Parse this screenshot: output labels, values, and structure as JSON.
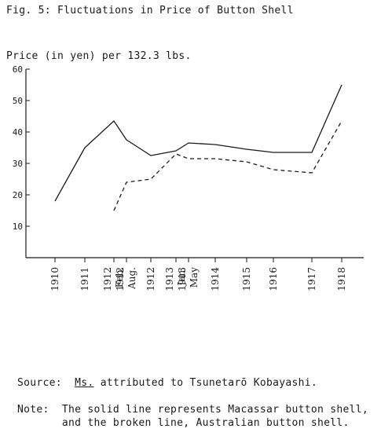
{
  "figure_title": "Fig. 5:  Fluctuations in Price of Button Shell",
  "source": {
    "label": "Source:",
    "ms": "Ms.",
    "text": "attributed to Tsunetarō Kobayashi."
  },
  "note": {
    "label": "Note:",
    "line1": "The solid line represents Macassar button shell,",
    "line2": "and the broken line, Australian button shell."
  },
  "chart_data": {
    "type": "line",
    "title": "Fig. 5:  Fluctuations in Price of Button Shell",
    "ylabel": "Price (in yen) per 132.3 lbs.",
    "xlabel": "",
    "ylim": [
      0,
      60
    ],
    "yticks": [
      10,
      20,
      30,
      40,
      50,
      60
    ],
    "categories": [
      "1910",
      "1911",
      "Feb. 1912",
      "Aug. 1912",
      "1912",
      "Jan. 1913",
      "May 1913",
      "1914",
      "1915",
      "1916",
      "1917",
      "1918"
    ],
    "series": [
      {
        "style": "solid",
        "color": "#1a1a1a",
        "values": [
          18,
          35,
          43.5,
          37.5,
          32.5,
          34,
          36.5,
          36,
          34.5,
          33.5,
          33.5,
          55
        ]
      },
      {
        "style": "dashed",
        "color": "#1a1a1a",
        "values": [
          null,
          null,
          15,
          24,
          25,
          33,
          31.5,
          31.5,
          30.5,
          28,
          27,
          43.5
        ]
      }
    ],
    "grid": false,
    "legend": "none"
  }
}
